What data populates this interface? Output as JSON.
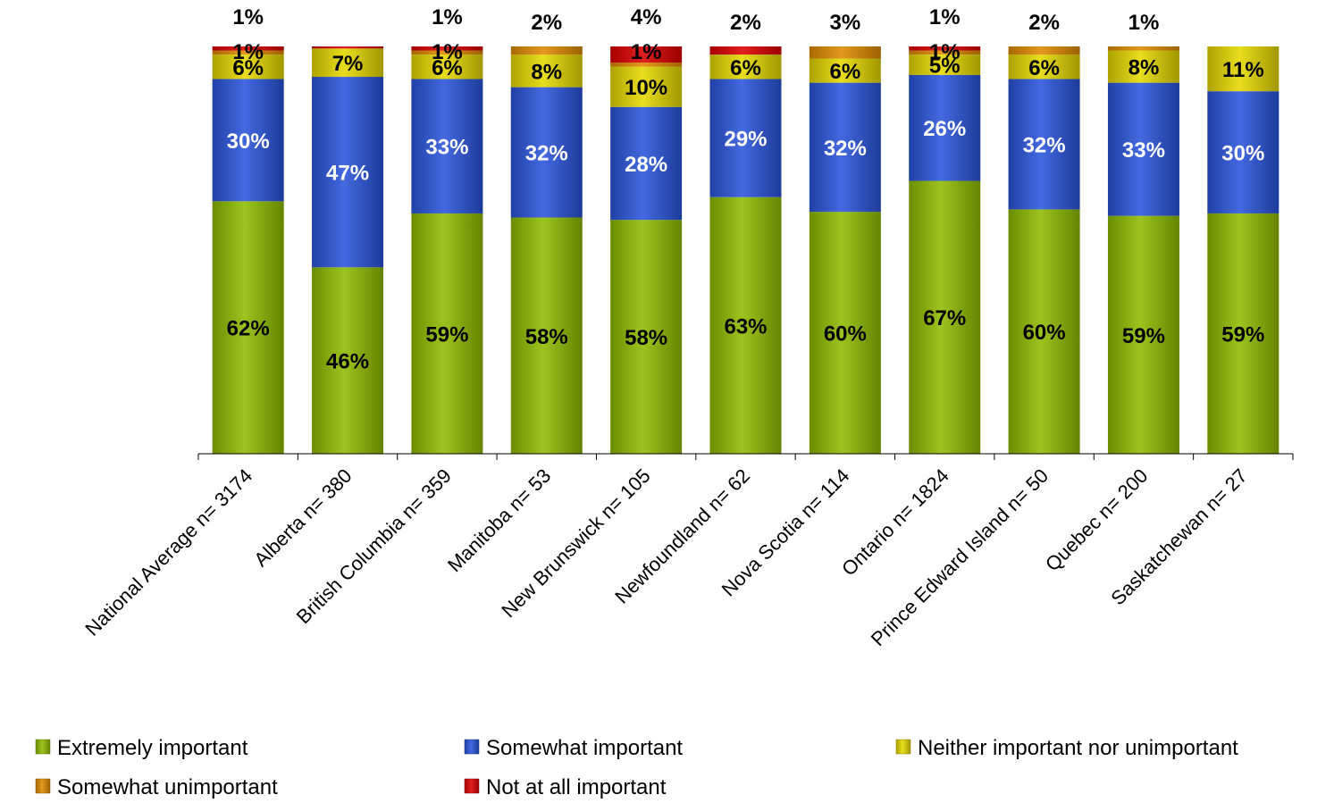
{
  "chart_data": {
    "type": "bar",
    "stacked": true,
    "percent": true,
    "categories": [
      "National Average n= 3174",
      "Alberta n= 380",
      "British Columbia n= 359",
      "Manitoba n= 53",
      "New Brunswick n= 105",
      "Newfoundland n= 62",
      "Nova Scotia n= 114",
      "Ontario n= 1824",
      "Prince Edward Island n= 50",
      "Quebec n= 200",
      "Saskatchewan n= 27"
    ],
    "series": [
      {
        "name": "Extremely important",
        "color": "#8fbc00",
        "values": [
          62,
          46,
          59,
          58,
          58,
          63,
          60,
          67,
          60,
          59,
          59
        ],
        "labels": [
          "62%",
          "46%",
          "59%",
          "58%",
          "58%",
          "63%",
          "60%",
          "67%",
          "60%",
          "59%",
          "59%"
        ]
      },
      {
        "name": "Somewhat important",
        "color": "#2a55dc",
        "values": [
          30,
          47,
          33,
          32,
          28,
          29,
          32,
          26,
          32,
          33,
          30
        ],
        "labels": [
          "30%",
          "47%",
          "33%",
          "32%",
          "28%",
          "29%",
          "32%",
          "26%",
          "32%",
          "33%",
          "30%"
        ]
      },
      {
        "name": "Neither important nor unimportant",
        "color": "#e6d800",
        "values": [
          6,
          7,
          6,
          8,
          10,
          6,
          6,
          5,
          6,
          8,
          11
        ],
        "labels": [
          "6%",
          "7%",
          "6%",
          "8%",
          "10%",
          "6%",
          "6%",
          "5%",
          "6%",
          "8%",
          "11%"
        ]
      },
      {
        "name": "Somewhat unimportant",
        "color": "#e08a00",
        "values": [
          1,
          0,
          1,
          2,
          1,
          0,
          3,
          1,
          2,
          1,
          0
        ],
        "labels": [
          "1%",
          "",
          "1%",
          "2%",
          "1%",
          "",
          "3%",
          "1%",
          "2%",
          "1%",
          ""
        ]
      },
      {
        "name": "Not at all important",
        "color": "#dd0000",
        "values": [
          1,
          0.5,
          1,
          0,
          4,
          2,
          0,
          1,
          0,
          0,
          0
        ],
        "labels": [
          "1%",
          "",
          "1%",
          "",
          "4%",
          "2%",
          "",
          "1%",
          "",
          "",
          ""
        ]
      }
    ],
    "ylim": [
      0,
      100
    ],
    "legend_position": "bottom",
    "grid": false,
    "title": "",
    "xlabel": "",
    "ylabel": ""
  }
}
